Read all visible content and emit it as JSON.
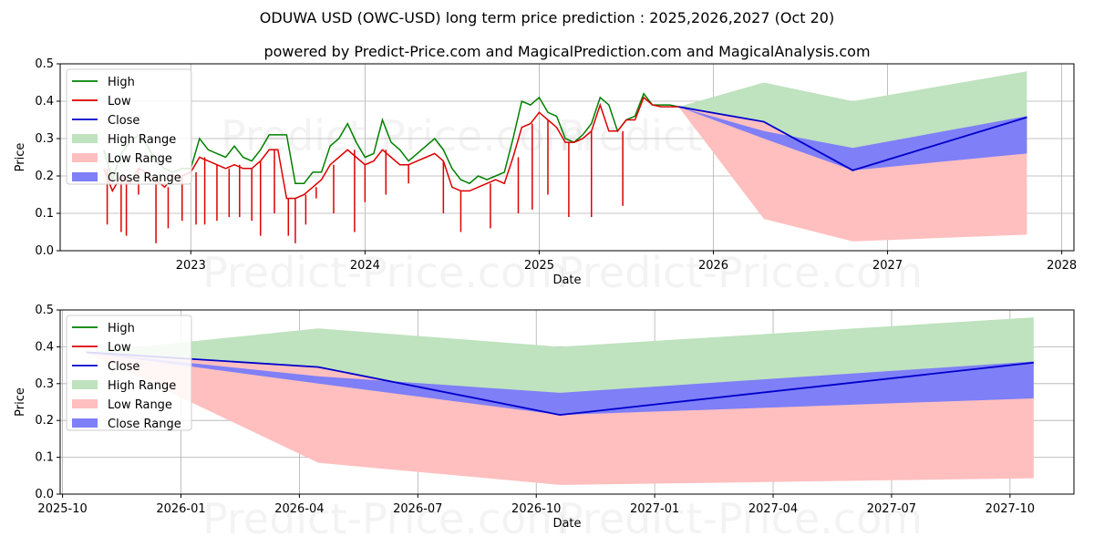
{
  "title": "ODUWA USD (OWC-USD) long term price prediction : 2025,2026,2027 (Oct 20)",
  "subtitle": "powered by Predict-Price.com and MagicalPrediction.com and MagicalAnalysis.com",
  "watermark": "Predict-Price.com",
  "colors": {
    "high": "#008000",
    "low": "#dd0000",
    "close": "#0000cc",
    "high_range": "#bfe2bf",
    "low_range": "#ffbfbf",
    "close_range": "#7f7ff7",
    "grid": "#b0b0b0",
    "axis": "#000000"
  },
  "legend": [
    "High",
    "Low",
    "Close",
    "High Range",
    "Low Range",
    "Close Range"
  ],
  "chart_data": [
    {
      "type": "line",
      "xlabel": "Date",
      "ylabel": "Price",
      "xlim": [
        2022.25,
        2028.07
      ],
      "ylim": [
        0,
        0.5
      ],
      "xticks": [
        2023,
        2024,
        2025,
        2026,
        2027,
        2028
      ],
      "xtick_labels": [
        "2023",
        "2024",
        "2025",
        "2026",
        "2027",
        "2028"
      ],
      "yticks": [
        0.0,
        0.1,
        0.2,
        0.3,
        0.4,
        0.5
      ],
      "ytick_labels": [
        "0.0",
        "0.1",
        "0.2",
        "0.3",
        "0.4",
        "0.5"
      ],
      "legend_position": "upper-left",
      "history": {
        "x": [
          2022.5,
          2022.55,
          2022.6,
          2022.65,
          2022.7,
          2022.75,
          2022.8,
          2022.85,
          2022.9,
          2022.95,
          2023.0,
          2023.05,
          2023.1,
          2023.15,
          2023.2,
          2023.25,
          2023.3,
          2023.35,
          2023.4,
          2023.45,
          2023.5,
          2023.55,
          2023.6,
          2023.65,
          2023.7,
          2023.75,
          2023.8,
          2023.85,
          2023.9,
          2023.95,
          2024.0,
          2024.05,
          2024.1,
          2024.15,
          2024.2,
          2024.25,
          2024.3,
          2024.35,
          2024.4,
          2024.45,
          2024.5,
          2024.55,
          2024.6,
          2024.65,
          2024.7,
          2024.75,
          2024.8,
          2024.85,
          2024.9,
          2024.95,
          2025.0,
          2025.05,
          2025.1,
          2025.15,
          2025.2,
          2025.25,
          2025.3,
          2025.35,
          2025.4,
          2025.45,
          2025.5,
          2025.55,
          2025.6,
          2025.65,
          2025.7,
          2025.75,
          2025.8
        ],
        "high": [
          0.27,
          0.19,
          0.26,
          0.29,
          0.31,
          0.28,
          0.24,
          0.22,
          0.21,
          0.22,
          0.22,
          0.3,
          0.27,
          0.26,
          0.25,
          0.28,
          0.25,
          0.24,
          0.27,
          0.31,
          0.31,
          0.31,
          0.18,
          0.18,
          0.21,
          0.21,
          0.28,
          0.3,
          0.34,
          0.29,
          0.25,
          0.26,
          0.35,
          0.29,
          0.27,
          0.24,
          0.26,
          0.28,
          0.3,
          0.27,
          0.22,
          0.19,
          0.18,
          0.2,
          0.19,
          0.2,
          0.21,
          0.3,
          0.4,
          0.39,
          0.41,
          0.37,
          0.36,
          0.3,
          0.29,
          0.31,
          0.34,
          0.41,
          0.39,
          0.32,
          0.35,
          0.36,
          0.42,
          0.39,
          0.39,
          0.39,
          0.385
        ],
        "low": [
          0.22,
          0.16,
          0.2,
          0.18,
          0.22,
          0.21,
          0.19,
          0.17,
          0.2,
          0.2,
          0.21,
          0.25,
          0.24,
          0.23,
          0.22,
          0.23,
          0.22,
          0.22,
          0.24,
          0.27,
          0.27,
          0.14,
          0.14,
          0.15,
          0.17,
          0.19,
          0.23,
          0.25,
          0.27,
          0.25,
          0.23,
          0.24,
          0.27,
          0.25,
          0.23,
          0.23,
          0.24,
          0.25,
          0.26,
          0.24,
          0.17,
          0.16,
          0.16,
          0.17,
          0.18,
          0.19,
          0.18,
          0.25,
          0.33,
          0.34,
          0.37,
          0.35,
          0.33,
          0.29,
          0.29,
          0.3,
          0.32,
          0.39,
          0.32,
          0.32,
          0.35,
          0.35,
          0.41,
          0.39,
          0.385,
          0.385,
          0.385
        ],
        "spikes": [
          {
            "x": 2022.52,
            "v": 0.07
          },
          {
            "x": 2022.6,
            "v": 0.05
          },
          {
            "x": 2022.63,
            "v": 0.04
          },
          {
            "x": 2022.7,
            "v": 0.15
          },
          {
            "x": 2022.8,
            "v": 0.02
          },
          {
            "x": 2022.87,
            "v": 0.06
          },
          {
            "x": 2022.95,
            "v": 0.08
          },
          {
            "x": 2023.03,
            "v": 0.07
          },
          {
            "x": 2023.08,
            "v": 0.07
          },
          {
            "x": 2023.15,
            "v": 0.08
          },
          {
            "x": 2023.22,
            "v": 0.09
          },
          {
            "x": 2023.28,
            "v": 0.09
          },
          {
            "x": 2023.35,
            "v": 0.08
          },
          {
            "x": 2023.4,
            "v": 0.04
          },
          {
            "x": 2023.48,
            "v": 0.1
          },
          {
            "x": 2023.56,
            "v": 0.04
          },
          {
            "x": 2023.6,
            "v": 0.02
          },
          {
            "x": 2023.66,
            "v": 0.07
          },
          {
            "x": 2023.72,
            "v": 0.14
          },
          {
            "x": 2023.82,
            "v": 0.1
          },
          {
            "x": 2023.94,
            "v": 0.05
          },
          {
            "x": 2024.0,
            "v": 0.13
          },
          {
            "x": 2024.12,
            "v": 0.15
          },
          {
            "x": 2024.25,
            "v": 0.18
          },
          {
            "x": 2024.45,
            "v": 0.1
          },
          {
            "x": 2024.55,
            "v": 0.05
          },
          {
            "x": 2024.72,
            "v": 0.06
          },
          {
            "x": 2024.88,
            "v": 0.1
          },
          {
            "x": 2024.96,
            "v": 0.11
          },
          {
            "x": 2025.05,
            "v": 0.15
          },
          {
            "x": 2025.17,
            "v": 0.09
          },
          {
            "x": 2025.3,
            "v": 0.09
          },
          {
            "x": 2025.48,
            "v": 0.12
          }
        ]
      },
      "forecast": {
        "x": [
          2025.8,
          2026.29,
          2026.8,
          2027.8
        ],
        "close": [
          0.385,
          0.345,
          0.215,
          0.357
        ],
        "high_range": {
          "upper": [
            0.385,
            0.45,
            0.4,
            0.48
          ],
          "lower": [
            0.385,
            0.345,
            0.215,
            0.357
          ]
        },
        "low_range": {
          "upper": [
            0.385,
            0.345,
            0.215,
            0.357
          ],
          "lower": [
            0.385,
            0.085,
            0.025,
            0.043
          ]
        },
        "close_range": {
          "upper": [
            0.385,
            0.32,
            0.275,
            0.36
          ],
          "lower": [
            0.385,
            0.3,
            0.215,
            0.26
          ]
        }
      }
    },
    {
      "type": "line",
      "xlabel": "Date",
      "ylabel": "Price",
      "xlim": [
        2025.745,
        2027.885
      ],
      "ylim": [
        0,
        0.5
      ],
      "xticks": [
        2025.75,
        2026.0,
        2026.25,
        2026.5,
        2026.75,
        2027.0,
        2027.25,
        2027.5,
        2027.75
      ],
      "xtick_labels": [
        "2025-10",
        "2026-01",
        "2026-04",
        "2026-07",
        "2026-10",
        "2027-01",
        "2027-04",
        "2027-07",
        "2027-10"
      ],
      "yticks": [
        0.0,
        0.1,
        0.2,
        0.3,
        0.4,
        0.5
      ],
      "ytick_labels": [
        "0.0",
        "0.1",
        "0.2",
        "0.3",
        "0.4",
        "0.5"
      ],
      "legend_position": "upper-left",
      "forecast": {
        "x": [
          2025.8,
          2026.29,
          2026.8,
          2027.8
        ],
        "close": [
          0.385,
          0.345,
          0.215,
          0.357
        ],
        "high_range": {
          "upper": [
            0.385,
            0.45,
            0.4,
            0.48
          ],
          "lower": [
            0.385,
            0.345,
            0.215,
            0.357
          ]
        },
        "low_range": {
          "upper": [
            0.385,
            0.345,
            0.215,
            0.357
          ],
          "lower": [
            0.385,
            0.085,
            0.025,
            0.043
          ]
        },
        "close_range": {
          "upper": [
            0.385,
            0.32,
            0.275,
            0.36
          ],
          "lower": [
            0.385,
            0.3,
            0.215,
            0.26
          ]
        }
      }
    }
  ]
}
